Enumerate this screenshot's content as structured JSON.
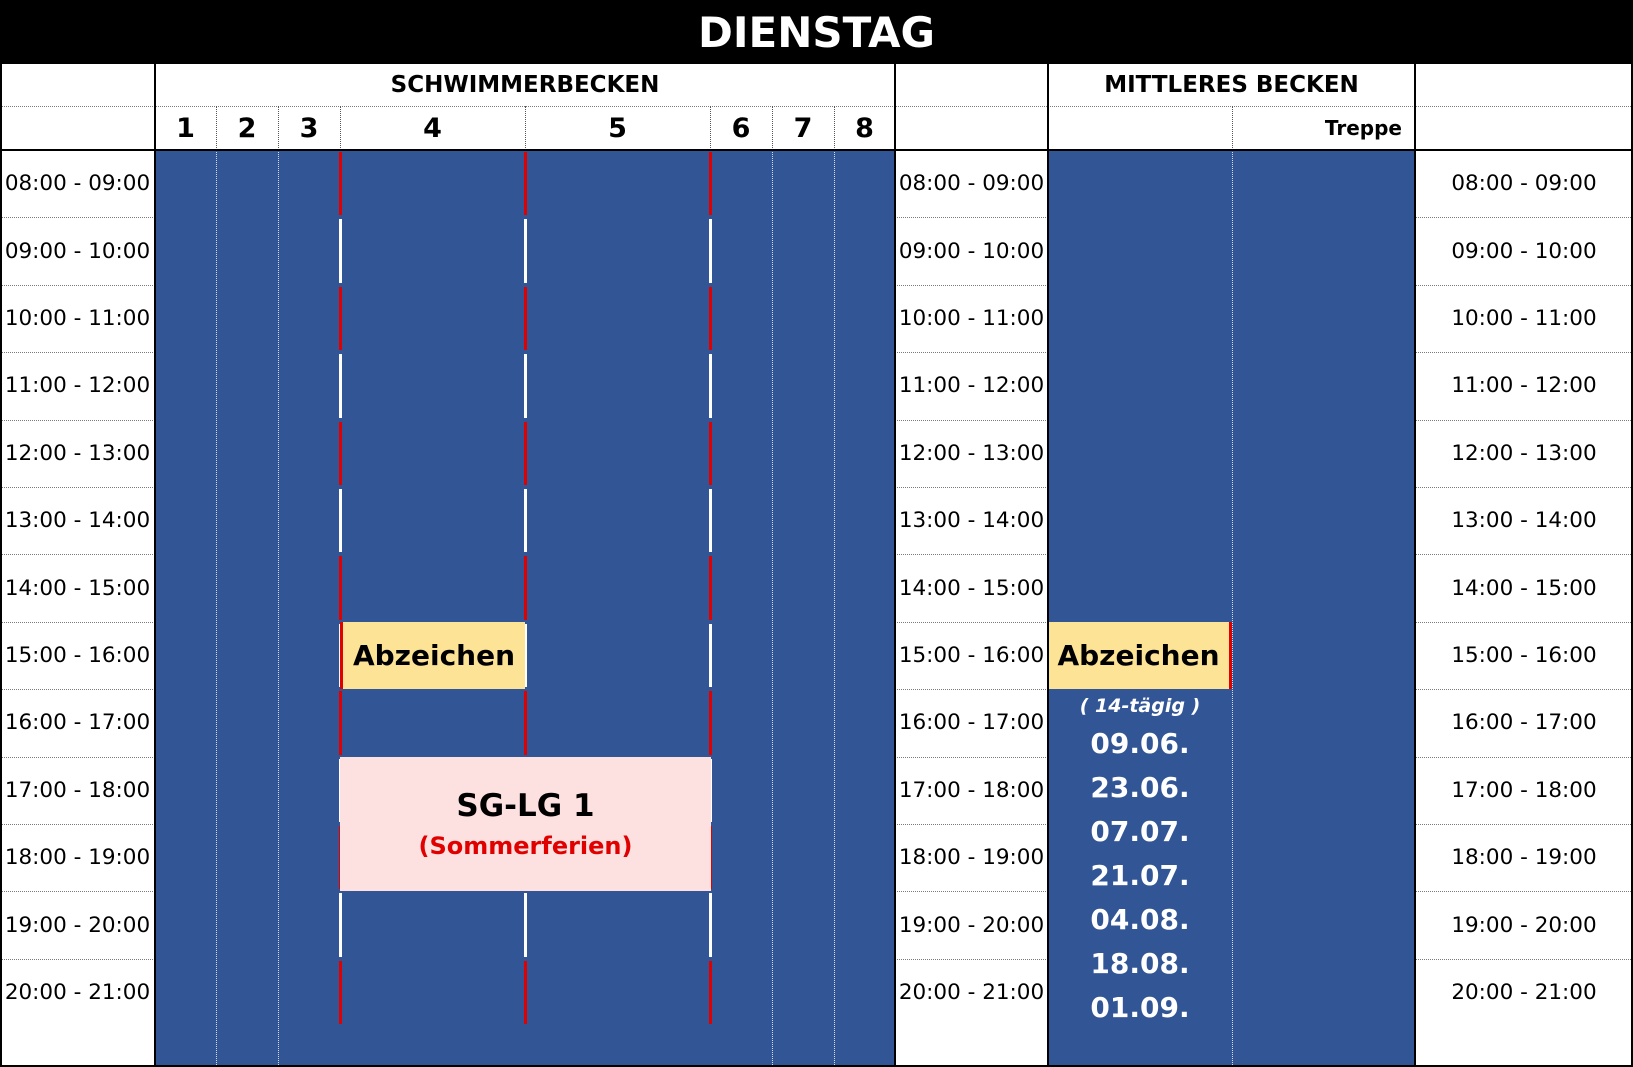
{
  "title": "DIENSTAG",
  "schwimmerbecken": {
    "title": "SCHWIMMERBECKEN",
    "lanes": [
      "1",
      "2",
      "3",
      "4",
      "5",
      "6",
      "7",
      "8"
    ]
  },
  "mittleres_becken": {
    "title": "MITTLERES BECKEN",
    "treppe": "Treppe"
  },
  "times": [
    "08:00 - 09:00",
    "09:00 - 10:00",
    "10:00 - 11:00",
    "11:00 - 12:00",
    "12:00 - 13:00",
    "13:00 - 14:00",
    "14:00 - 15:00",
    "15:00 - 16:00",
    "16:00 - 17:00",
    "17:00 - 18:00",
    "18:00 - 19:00",
    "19:00 - 20:00",
    "20:00 - 21:00"
  ],
  "events": {
    "abzeichen_schwimmer": "Abzeichen",
    "abzeichen_mittleres": "Abzeichen",
    "sglg_title": "SG-LG 1",
    "sglg_subtitle": "(Sommerferien)",
    "frequency": "( 14-tägig )",
    "dates": [
      "09.06.",
      "23.06.",
      "07.07.",
      "21.07.",
      "04.08.",
      "18.08.",
      "01.09."
    ]
  },
  "colors": {
    "pool_blue": "#325695",
    "badge_yellow": "#fde396",
    "sglg_pink": "#fde0e0",
    "lane_rope_red": "#e00000",
    "lane_rope_white": "#ffffff"
  }
}
